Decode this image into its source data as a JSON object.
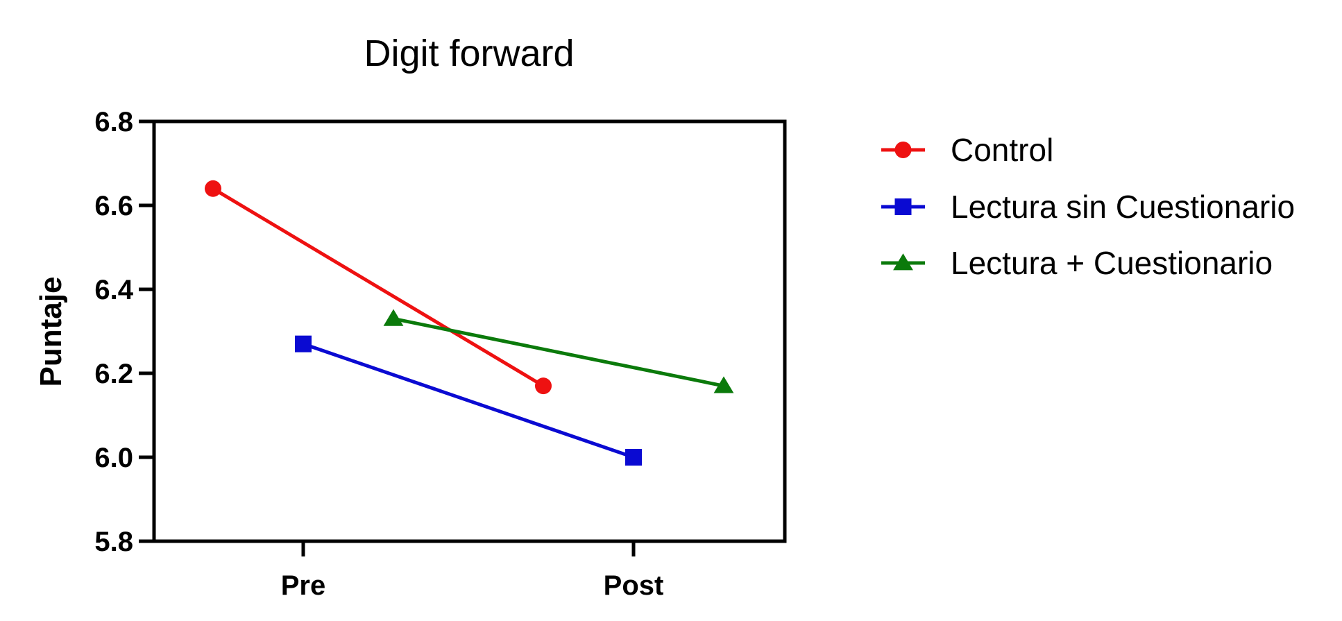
{
  "chart_data": {
    "type": "line",
    "title": "Digit forward",
    "xlabel": "",
    "ylabel": "Puntaje",
    "categories": [
      "Pre",
      "Post"
    ],
    "ylim": [
      5.8,
      6.8
    ],
    "yticks": [
      "5.8",
      "6.0",
      "6.2",
      "6.4",
      "6.6",
      "6.8"
    ],
    "grid": false,
    "legend_position": "right",
    "series": [
      {
        "name": "Control",
        "color": "#ee1111",
        "marker": "circle",
        "values": [
          6.64,
          6.17
        ]
      },
      {
        "name": "Lectura sin Cuestionario",
        "color": "#0a0ad2",
        "marker": "square",
        "values": [
          6.27,
          6.0
        ]
      },
      {
        "name": "Lectura + Cuestionario",
        "color": "#0b7a0b",
        "marker": "triangle",
        "values": [
          6.33,
          6.17
        ]
      }
    ]
  }
}
